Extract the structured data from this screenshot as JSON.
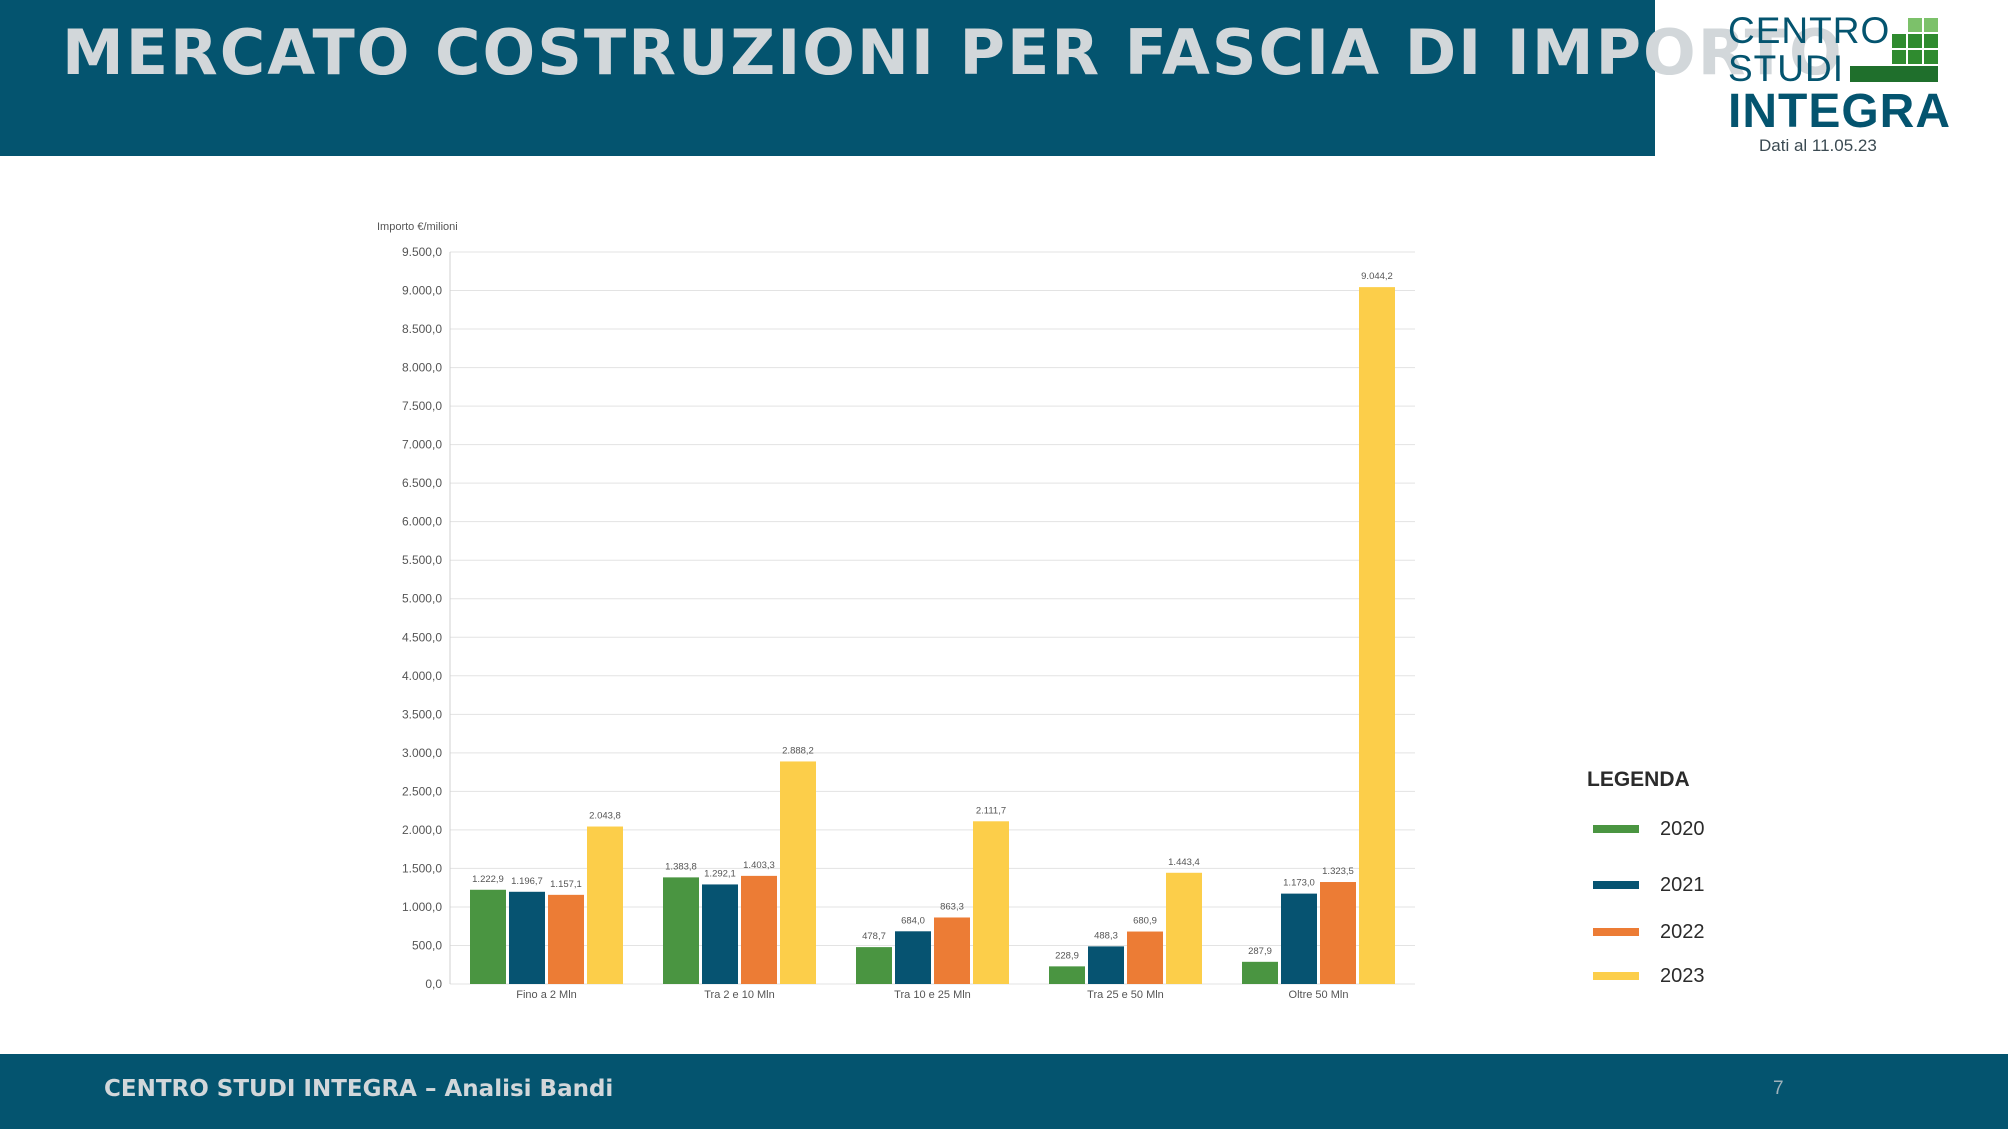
{
  "header": {
    "title": "MERCATO COSTRUZIONI PER FASCIA DI IMPORTO"
  },
  "logo": {
    "line1": "CENTRO",
    "line2": "STUDI",
    "line3": "INTEGRA",
    "date": "Dati al 11.05.23",
    "colors": {
      "dark": "#04546f",
      "green_dark": "#2f8b2f",
      "green_light": "#7cc16a"
    }
  },
  "chart_data": {
    "type": "bar",
    "ylabel": "Importo €/milioni",
    "ylim": [
      0,
      9500
    ],
    "yticks": [
      "0,0",
      "500,0",
      "1.000,0",
      "1.500,0",
      "2.000,0",
      "2.500,0",
      "3.000,0",
      "3.500,0",
      "4.000,0",
      "4.500,0",
      "5.000,0",
      "5.500,0",
      "6.000,0",
      "6.500,0",
      "7.000,0",
      "7.500,0",
      "8.000,0",
      "8.500,0",
      "9.000,0",
      "9.500,0"
    ],
    "grid": true,
    "categories": [
      "Fino a 2 Mln",
      "Tra 2 e 10 Mln",
      "Tra 10 e 25 Mln",
      "Tra 25 e 50 Mln",
      "Oltre 50 Mln"
    ],
    "series": [
      {
        "name": "2020",
        "color": "#4a9541",
        "values": [
          1222.9,
          1383.8,
          478.7,
          228.9,
          287.9
        ],
        "labels": [
          "1.222,9",
          "1.383,8",
          "478,7",
          "228,9",
          "287,9"
        ]
      },
      {
        "name": "2021",
        "color": "#065371",
        "values": [
          1196.7,
          1292.1,
          684.0,
          488.3,
          1173.0
        ],
        "labels": [
          "1.196,7",
          "1.292,1",
          "684,0",
          "488,3",
          "1.173,0"
        ]
      },
      {
        "name": "2022",
        "color": "#ec7c35",
        "values": [
          1157.1,
          1403.3,
          863.3,
          680.9,
          1323.5
        ],
        "labels": [
          "1.157,1",
          "1.403,3",
          "863,3",
          "680,9",
          "1.323,5"
        ]
      },
      {
        "name": "2023",
        "color": "#fcce4a",
        "values": [
          2043.8,
          2888.2,
          2111.7,
          1443.4,
          9044.2
        ],
        "labels": [
          "2.043,8",
          "2.888,2",
          "2.111,7",
          "1.443,4",
          "9.044,2"
        ]
      }
    ],
    "legend": {
      "title": "LEGENDA",
      "placement": "right"
    }
  },
  "footer": {
    "text": "CENTRO STUDI INTEGRA – Analisi Bandi",
    "page": "7"
  }
}
